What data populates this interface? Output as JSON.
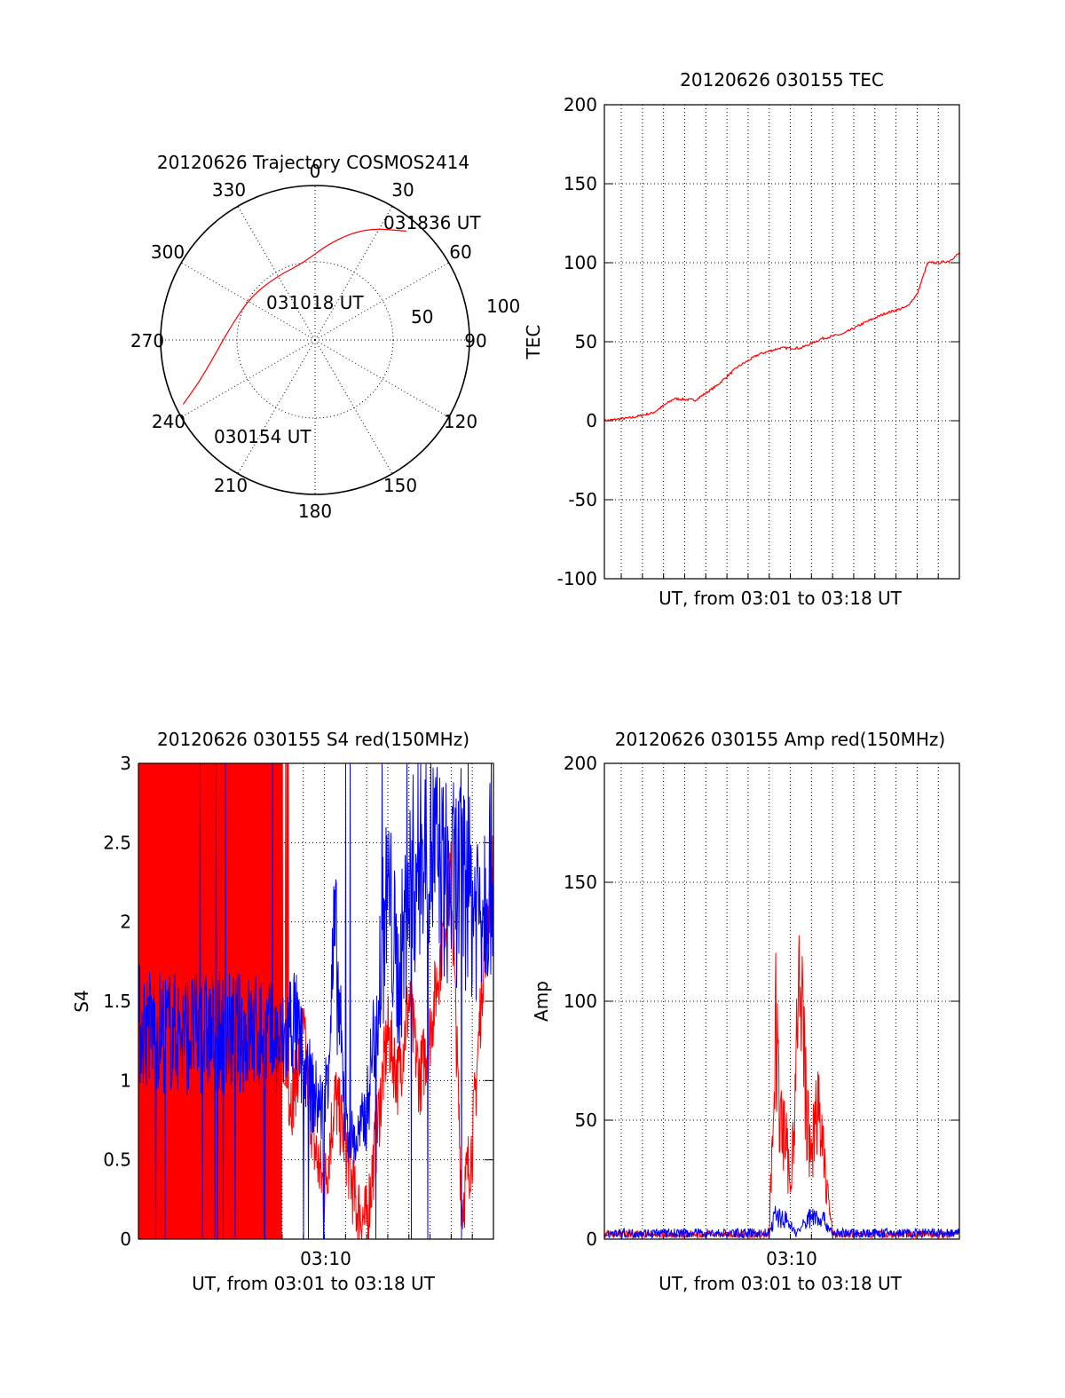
{
  "colors": {
    "red": "#ff0000",
    "blue": "#0000ff",
    "axis": "#000000"
  },
  "chart_data": [
    {
      "type": "polar",
      "title": "20120626 Trajectory COSMOS2414",
      "azimuth_labels": [
        "0",
        "30",
        "60",
        "90",
        "120",
        "150",
        "180",
        "210",
        "240",
        "270",
        "300",
        "330"
      ],
      "radial_labels": [
        "50",
        "100"
      ],
      "series": [
        {
          "color": "red",
          "points": [
            [
              244,
              5
            ],
            [
              250,
              20
            ],
            [
              260,
              33
            ],
            [
              280,
              45
            ],
            [
              305,
              50
            ],
            [
              330,
              52
            ],
            [
              350,
              50
            ],
            [
              10,
              35
            ],
            [
              25,
              20
            ],
            [
              40,
              8
            ]
          ]
        }
      ],
      "annotations": [
        "031836 UT",
        "031018 UT",
        "030154 UT"
      ]
    },
    {
      "type": "line",
      "title": "20120626 030155 TEC",
      "xlabel": "UT, from 03:01 to 03:18 UT",
      "ylabel": "TEC",
      "ylim": [
        -100,
        200
      ],
      "yticks": [
        "200",
        "150",
        "100",
        "50",
        "0",
        "-50",
        "-100"
      ],
      "grid": true,
      "series": [
        {
          "color": "red",
          "x_min": [
            1.2,
            2.5,
            3.5,
            4.5,
            5.5,
            6.5,
            7.5,
            8.5,
            9.5,
            10.5,
            11.5,
            12.5,
            13.5,
            14.5,
            15.5,
            16.0,
            16.5,
            17.0,
            17.5,
            18.0
          ],
          "values": [
            0,
            2,
            5,
            14,
            13,
            22,
            34,
            42,
            46,
            46,
            52,
            55,
            62,
            68,
            72,
            80,
            100,
            100,
            101,
            106
          ]
        }
      ]
    },
    {
      "type": "line",
      "title": "20120626 030155 S4 red(150MHz)",
      "xlabel": "UT, from 03:01 to 03:18 UT",
      "ylabel": "S4",
      "ylim": [
        0,
        3
      ],
      "yticks": [
        "3",
        "2.5",
        "2",
        "1.5",
        "1",
        "0.5",
        "0"
      ],
      "xticks": [
        "03:10"
      ],
      "grid": true,
      "series": [
        {
          "color": "red",
          "x_min": [
            1.2,
            5.0,
            7.5,
            8.0,
            8.5,
            9.0,
            9.5,
            10.0,
            10.5,
            11.0,
            11.5,
            12.0,
            12.5,
            13.0,
            13.5,
            14.0,
            14.5,
            15.0,
            15.5,
            16.0,
            16.5,
            17.0,
            17.5,
            18.0
          ],
          "values": [
            1.5,
            1.5,
            1.5,
            1.0,
            0.9,
            1.3,
            0.6,
            0.3,
            0.9,
            0.6,
            0.2,
            0.1,
            0.7,
            1.3,
            1.0,
            1.5,
            1.0,
            1.3,
            1.8,
            2.3,
            0.2,
            0.6,
            1.7,
            2.4
          ]
        },
        {
          "color": "blue",
          "x_min": [
            1.2,
            3.0,
            5.0,
            7.0,
            8.0,
            8.5,
            9.0,
            9.5,
            10.0,
            10.5,
            11.0,
            11.5,
            12.0,
            12.5,
            13.0,
            13.5,
            14.0,
            14.5,
            15.0,
            15.5,
            16.0,
            16.5,
            17.0,
            17.5,
            18.0
          ],
          "values": [
            1.35,
            1.3,
            1.3,
            1.3,
            1.2,
            1.4,
            1.1,
            0.9,
            0.8,
            1.9,
            0.7,
            0.6,
            0.8,
            1.5,
            2.2,
            1.6,
            2.2,
            2.4,
            2.5,
            2.3,
            2.2,
            2.3,
            2.1,
            2.2,
            2.4
          ]
        }
      ]
    },
    {
      "type": "line",
      "title": "20120626 030155 Amp red(150MHz)",
      "xlabel": "UT, from 03:01 to 03:18 UT",
      "ylabel": "Amp",
      "ylim": [
        0,
        200
      ],
      "yticks": [
        "200",
        "150",
        "100",
        "50",
        "0"
      ],
      "xticks": [
        "03:10"
      ],
      "grid": true,
      "series": [
        {
          "color": "red",
          "x_min": [
            1.2,
            8.5,
            9.0,
            9.3,
            9.5,
            9.8,
            10.0,
            10.3,
            10.5,
            10.8,
            11.0,
            11.2,
            11.5,
            12.0,
            18.0
          ],
          "values": [
            2,
            2,
            2,
            90,
            50,
            40,
            20,
            80,
            105,
            50,
            30,
            60,
            40,
            2,
            2
          ]
        },
        {
          "color": "blue",
          "x_min": [
            1.2,
            9.0,
            9.3,
            9.8,
            10.3,
            11.0,
            11.5,
            12.0,
            18.0
          ],
          "values": [
            2.5,
            2.5,
            10,
            8,
            2.5,
            10,
            9,
            2.5,
            2.5
          ]
        }
      ]
    }
  ]
}
